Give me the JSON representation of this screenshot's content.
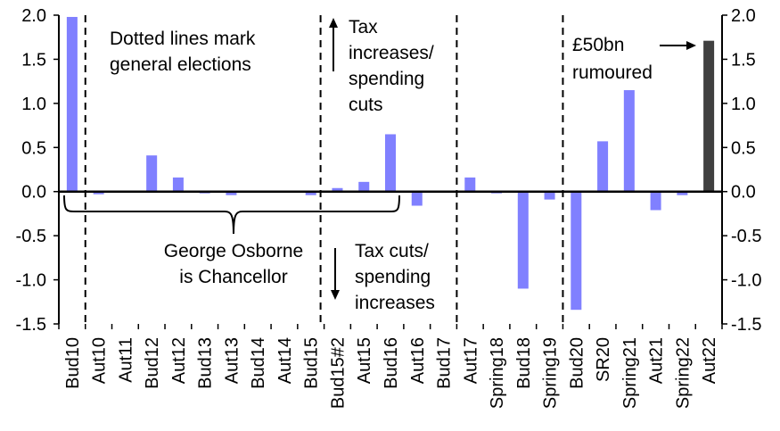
{
  "chart_data": {
    "type": "bar",
    "title": "",
    "xlabel": "",
    "ylabel": "",
    "ylim": [
      -1.5,
      2.0
    ],
    "yticks": [
      "2.0",
      "1.5",
      "1.0",
      "0.5",
      "0.0",
      "-0.5",
      "-1.0",
      "-1.5"
    ],
    "ytick_values": [
      2.0,
      1.5,
      1.0,
      0.5,
      0.0,
      -0.5,
      -1.0,
      -1.5
    ],
    "grid": false,
    "categories": [
      "Bud10",
      "Aut10",
      "Aut11",
      "Bud12",
      "Aut12",
      "Bud13",
      "Aut13",
      "Bud14",
      "Aut14",
      "Bud15",
      "Bud15#2",
      "Aut15",
      "Bud16",
      "Aut16",
      "Bud17",
      "Aut17",
      "Spring18",
      "Bud18",
      "Spring19",
      "Bud20",
      "SR20",
      "Spring21",
      "Aut21",
      "Spring22",
      "Aut22"
    ],
    "values": [
      1.98,
      -0.03,
      0.01,
      0.41,
      0.16,
      -0.02,
      -0.04,
      0.01,
      0.01,
      -0.04,
      0.04,
      0.11,
      0.65,
      -0.16,
      0.01,
      0.16,
      -0.02,
      -1.1,
      -0.09,
      -1.34,
      0.57,
      1.15,
      -0.21,
      -0.04,
      1.71
    ],
    "highlight_category": "Aut22",
    "election_lines_after": [
      "Bud10",
      "Bud15",
      "Bud17",
      "Spring19"
    ],
    "colors": {
      "bar": "#8080FF",
      "highlight": "#404040"
    },
    "annotations": {
      "elections_line1": "Dotted lines mark",
      "elections_line2": "general elections",
      "up_line1": "Tax",
      "up_line2": "increases/",
      "up_line3": "spending",
      "up_line4": "cuts",
      "down_line1": "Tax cuts/",
      "down_line2": "spending",
      "down_line3": "increases",
      "osborne_line1": "George Osborne",
      "osborne_line2": "is Chancellor",
      "rumour_line1": "£50bn",
      "rumour_line2": "rumoured"
    }
  }
}
